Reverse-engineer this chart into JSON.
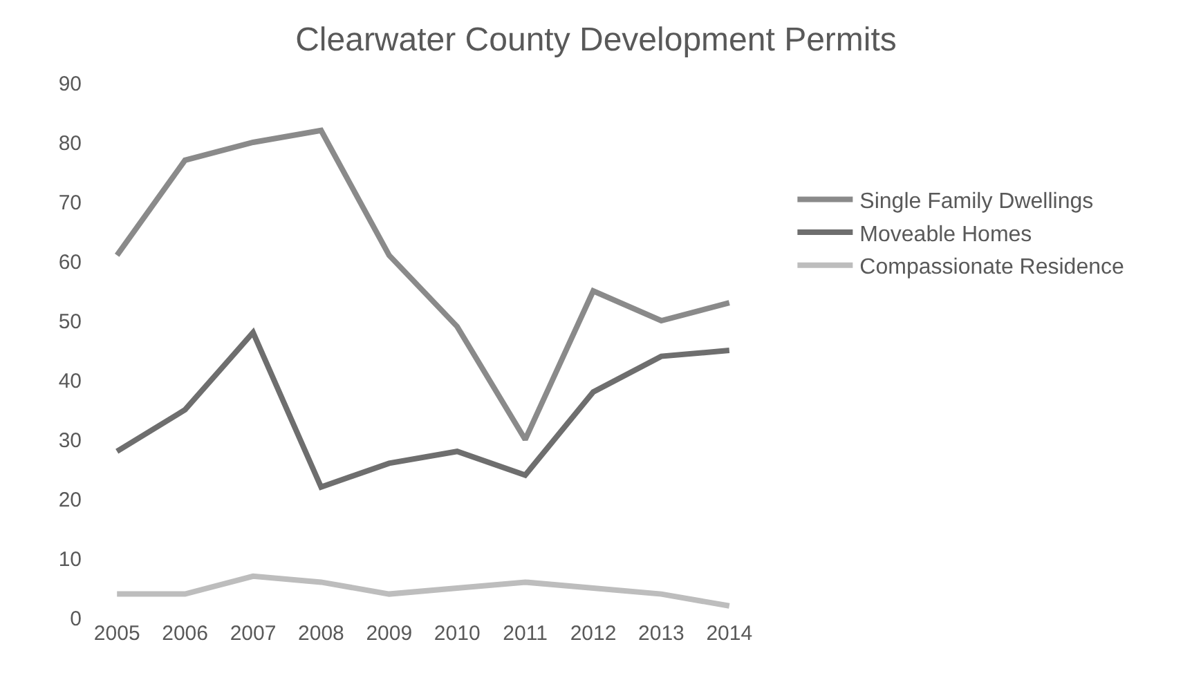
{
  "chart_data": {
    "type": "line",
    "title": "Clearwater County Development Permits",
    "categories": [
      "2005",
      "2006",
      "2007",
      "2008",
      "2009",
      "2010",
      "2011",
      "2012",
      "2013",
      "2014"
    ],
    "series": [
      {
        "name": "Single Family Dwellings",
        "color": "#8a8a8a",
        "values": [
          61,
          77,
          80,
          82,
          61,
          49,
          30,
          55,
          50,
          53
        ]
      },
      {
        "name": "Moveable Homes",
        "color": "#6e6e6e",
        "values": [
          28,
          35,
          48,
          22,
          26,
          28,
          24,
          38,
          44,
          45
        ]
      },
      {
        "name": "Compassionate Residence",
        "color": "#bdbdbd",
        "values": [
          4,
          4,
          7,
          6,
          4,
          5,
          6,
          5,
          4,
          2
        ]
      }
    ],
    "ylim": [
      0,
      90
    ],
    "yticks": [
      0,
      10,
      20,
      30,
      40,
      50,
      60,
      70,
      80,
      90
    ],
    "grid": false,
    "legend": "right",
    "marker": "none",
    "line_style": "solid"
  }
}
